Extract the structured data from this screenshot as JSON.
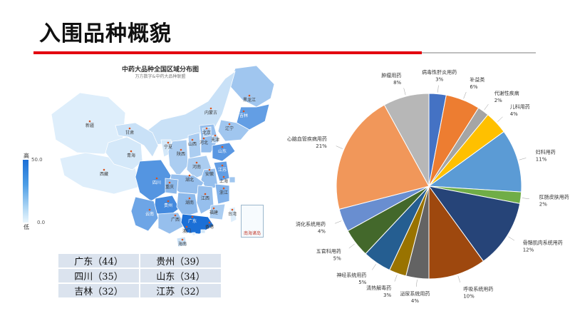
{
  "header": {
    "title": "入围品种概貌"
  },
  "map": {
    "title": "中药大品种全国区域分布图",
    "subtitle": "万方数字&中药大品种联盟",
    "legend": {
      "high": "高",
      "low": "低",
      "max": "50.0",
      "min": "0.0"
    },
    "inset_label": "南海诸岛",
    "provinces": [
      {
        "name": "黑龙江",
        "level": 0.35
      },
      {
        "name": "吉林",
        "level": 0.65
      },
      {
        "name": "辽宁",
        "level": 0.35
      },
      {
        "name": "内蒙古",
        "level": 0.15
      },
      {
        "name": "新疆",
        "level": 0.05
      },
      {
        "name": "西藏",
        "level": 0.05
      },
      {
        "name": "青海",
        "level": 0.1
      },
      {
        "name": "甘肃",
        "level": 0.15
      },
      {
        "name": "宁夏",
        "level": 0.1
      },
      {
        "name": "陕西",
        "level": 0.3
      },
      {
        "name": "山西",
        "level": 0.3
      },
      {
        "name": "河北",
        "level": 0.4
      },
      {
        "name": "北京",
        "level": 0.3
      },
      {
        "name": "天津",
        "level": 0.25
      },
      {
        "name": "山东",
        "level": 0.7
      },
      {
        "name": "河南",
        "level": 0.3
      },
      {
        "name": "江苏",
        "level": 0.65
      },
      {
        "name": "安徽",
        "level": 0.4
      },
      {
        "name": "上海",
        "level": 0.35
      },
      {
        "name": "湖北",
        "level": 0.4
      },
      {
        "name": "四川",
        "level": 0.72
      },
      {
        "name": "重庆",
        "level": 0.45
      },
      {
        "name": "贵州",
        "level": 0.8
      },
      {
        "name": "湖南",
        "level": 0.45
      },
      {
        "name": "江西",
        "level": 0.4
      },
      {
        "name": "浙江",
        "level": 0.5
      },
      {
        "name": "福建",
        "level": 0.3
      },
      {
        "name": "云南",
        "level": 0.6
      },
      {
        "name": "广西",
        "level": 0.4
      },
      {
        "name": "广东",
        "level": 1.0
      },
      {
        "name": "香港",
        "level": 0.1
      },
      {
        "name": "海南",
        "level": 0.15
      },
      {
        "name": "台湾",
        "level": 0.05
      },
      {
        "name": "澳门",
        "level": 0.05
      }
    ]
  },
  "ranking": [
    [
      "广东（44）",
      "贵州（39）"
    ],
    [
      "四川（35）",
      "山东（34）"
    ],
    [
      "吉林（32）",
      "江苏（32）"
    ]
  ],
  "chart_data": {
    "type": "pie",
    "start_angle_deg": 0,
    "slices": [
      {
        "label": "病毒性肝炎用药",
        "value": 3,
        "pct_label": "3%",
        "color": "#4472c4"
      },
      {
        "label": "补益类",
        "value": 6,
        "pct_label": "6%",
        "color": "#ed7d31"
      },
      {
        "label": "代谢性疾病",
        "value": 2,
        "pct_label": "2%",
        "color": "#a5a5a5"
      },
      {
        "label": "儿科用药",
        "value": 4,
        "pct_label": "4%",
        "color": "#ffc000"
      },
      {
        "label": "妇科用药",
        "value": 11,
        "pct_label": "11%",
        "color": "#5b9bd5"
      },
      {
        "label": "肛肠皮肤用药",
        "value": 2,
        "pct_label": "2%",
        "color": "#70ad47"
      },
      {
        "label": "骨骼肌肉系统用药",
        "value": 12,
        "pct_label": "12%",
        "color": "#264478"
      },
      {
        "label": "呼吸系统用药",
        "value": 10,
        "pct_label": "10%",
        "color": "#9e480e"
      },
      {
        "label": "泌尿系统用药",
        "value": 4,
        "pct_label": "4%",
        "color": "#636363"
      },
      {
        "label": "清热解毒药",
        "value": 3,
        "pct_label": "3%",
        "color": "#997300"
      },
      {
        "label": "神经系统用药",
        "value": 5,
        "pct_label": "5%",
        "color": "#255e91"
      },
      {
        "label": "五官科用药",
        "value": 5,
        "pct_label": "5%",
        "color": "#43682b"
      },
      {
        "label": "消化系统用药",
        "value": 4,
        "pct_label": "4%",
        "color": "#698ed0"
      },
      {
        "label": "心脑血管疾病用药",
        "value": 21,
        "pct_label": "21%",
        "color": "#f1975a"
      },
      {
        "label": "肿瘤用药",
        "value": 8,
        "pct_label": "8%",
        "color": "#b7b7b7"
      }
    ]
  }
}
